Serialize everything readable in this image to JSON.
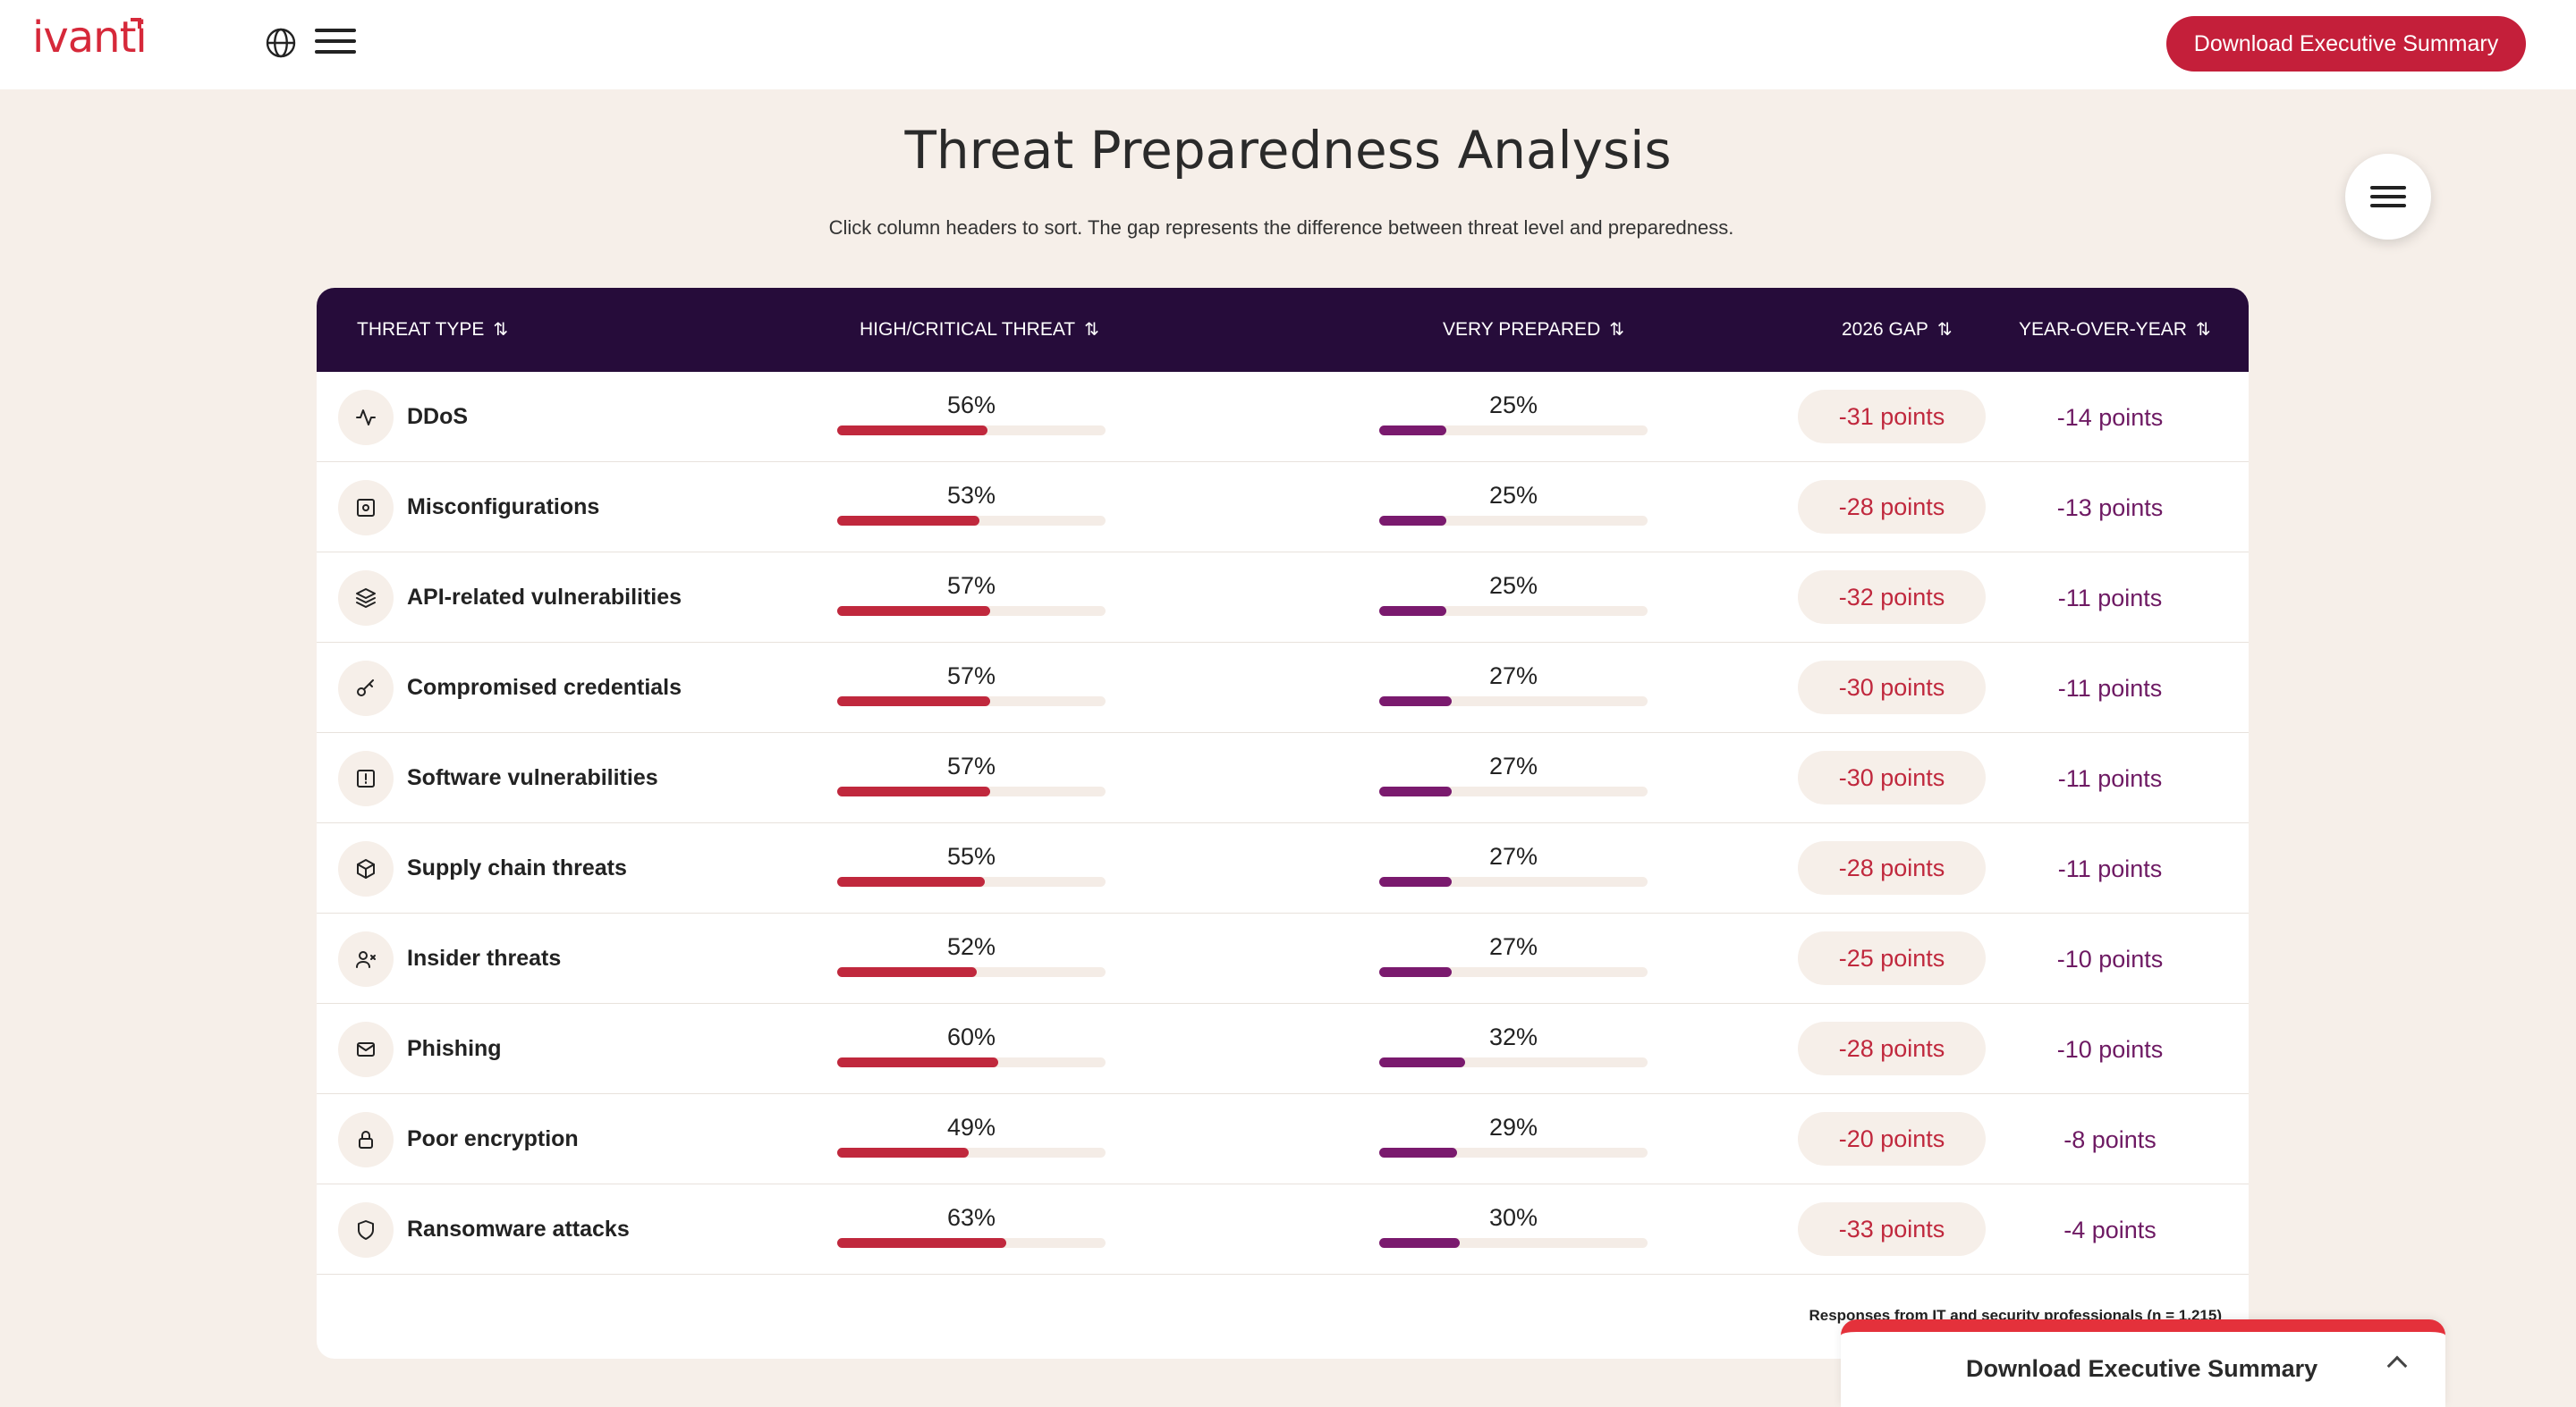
{
  "header": {
    "logo": "ivanti",
    "download_button": "Download Executive Summary",
    "icons": [
      "globe-icon",
      "hamburger-menu-icon"
    ]
  },
  "page": {
    "title": "Threat Preparedness Analysis",
    "subtitle": "Click column headers to sort. The gap represents the difference between threat level and preparedness."
  },
  "table": {
    "columns": [
      "THREAT TYPE",
      "HIGH/CRITICAL THREAT",
      "VERY PREPARED",
      "2026 GAP",
      "YEAR-OVER-YEAR"
    ],
    "sort_glyph": "⇅",
    "rows": [
      {
        "icon": "activity-icon",
        "name": "DDoS",
        "threat": "56%",
        "threat_value": 56,
        "prepared": "25%",
        "prepared_value": 25,
        "gap": "-31 points",
        "yoy": "-14 points"
      },
      {
        "icon": "settings-square-icon",
        "name": "Misconfigurations",
        "threat": "53%",
        "threat_value": 53,
        "prepared": "25%",
        "prepared_value": 25,
        "gap": "-28 points",
        "yoy": "-13 points"
      },
      {
        "icon": "layers-icon",
        "name": "API-related vulnerabilities",
        "threat": "57%",
        "threat_value": 57,
        "prepared": "25%",
        "prepared_value": 25,
        "gap": "-32 points",
        "yoy": "-11 points"
      },
      {
        "icon": "key-icon",
        "name": "Compromised credentials",
        "threat": "57%",
        "threat_value": 57,
        "prepared": "27%",
        "prepared_value": 27,
        "gap": "-30 points",
        "yoy": "-11 points"
      },
      {
        "icon": "alert-square-icon",
        "name": "Software vulnerabilities",
        "threat": "57%",
        "threat_value": 57,
        "prepared": "27%",
        "prepared_value": 27,
        "gap": "-30 points",
        "yoy": "-11 points"
      },
      {
        "icon": "package-icon",
        "name": "Supply chain threats",
        "threat": "55%",
        "threat_value": 55,
        "prepared": "27%",
        "prepared_value": 27,
        "gap": "-28 points",
        "yoy": "-11 points"
      },
      {
        "icon": "user-x-icon",
        "name": "Insider threats",
        "threat": "52%",
        "threat_value": 52,
        "prepared": "27%",
        "prepared_value": 27,
        "gap": "-25 points",
        "yoy": "-10 points"
      },
      {
        "icon": "mail-icon",
        "name": "Phishing",
        "threat": "60%",
        "threat_value": 60,
        "prepared": "32%",
        "prepared_value": 32,
        "gap": "-28 points",
        "yoy": "-10 points"
      },
      {
        "icon": "lock-icon",
        "name": "Poor encryption",
        "threat": "49%",
        "threat_value": 49,
        "prepared": "29%",
        "prepared_value": 29,
        "gap": "-20 points",
        "yoy": "-8 points"
      },
      {
        "icon": "shield-icon",
        "name": "Ransomware attacks",
        "threat": "63%",
        "threat_value": 63,
        "prepared": "30%",
        "prepared_value": 30,
        "gap": "-33 points",
        "yoy": "-4 points"
      }
    ],
    "footnote": "Responses from IT and security professionals (n = 1,215)"
  },
  "bottom_panel": {
    "label": "Download Executive Summary",
    "icon": "chevron-up-icon"
  },
  "colors": {
    "brand_red": "#c41f3a",
    "header_bg": "#260c3a",
    "threat_bar": "#c0283d",
    "prepared_bar": "#7a1a6e",
    "page_bg": "#f6efe9"
  }
}
